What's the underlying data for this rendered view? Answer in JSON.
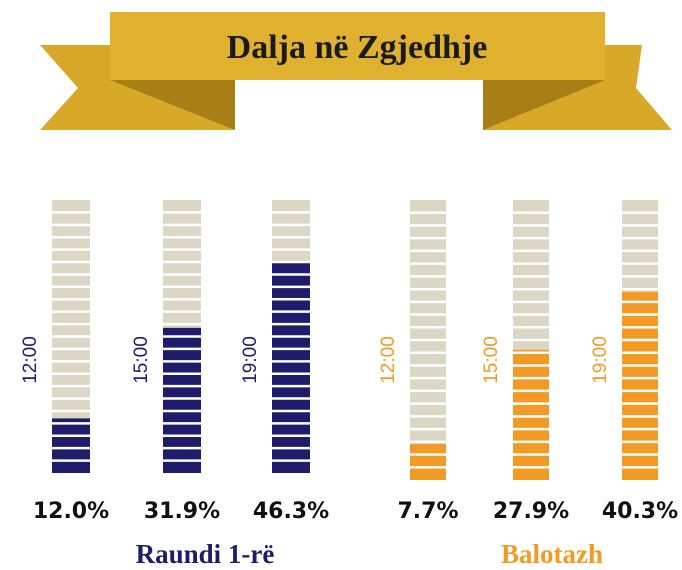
{
  "title": "Dalja në Zgjedhje",
  "chart_data": [
    {
      "type": "bar",
      "title": "Raundi 1-rë",
      "categories": [
        "12:00",
        "15:00",
        "19:00"
      ],
      "values": [
        12.0,
        31.9,
        46.3
      ],
      "value_labels": [
        "12.0%",
        "31.9%",
        "46.3%"
      ],
      "color": "#1f1c6b",
      "ylim": [
        0,
        60
      ]
    },
    {
      "type": "bar",
      "title": "Balotazh",
      "categories": [
        "12:00",
        "15:00",
        "19:00"
      ],
      "values": [
        7.7,
        27.9,
        40.3
      ],
      "value_labels": [
        "7.7%",
        "27.9%",
        "40.3%"
      ],
      "color": "#f39a24",
      "ylim": [
        0,
        60
      ]
    }
  ]
}
